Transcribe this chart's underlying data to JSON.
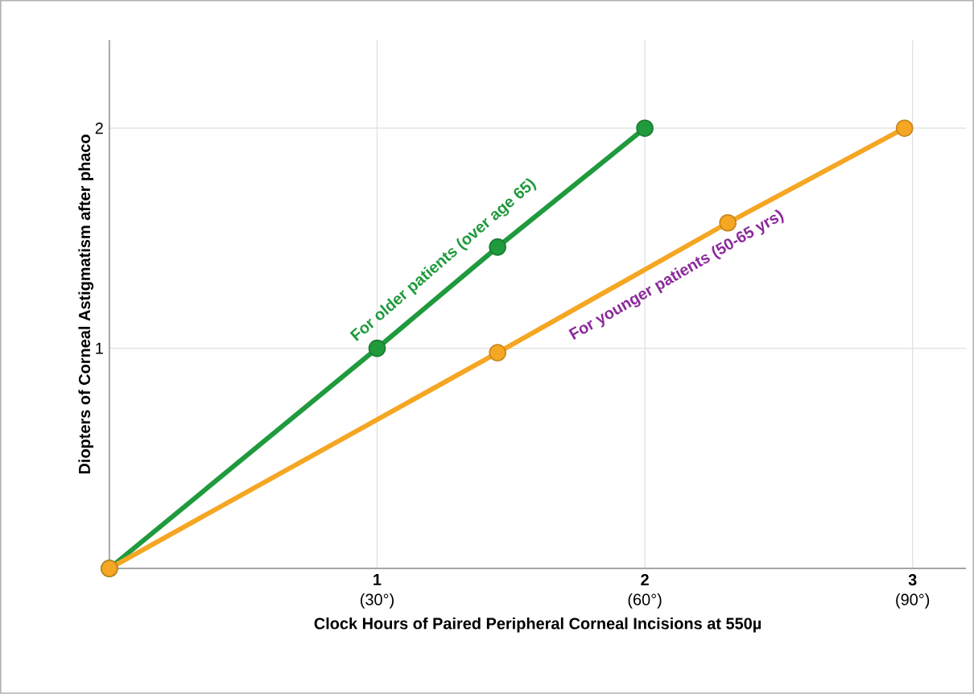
{
  "chart_data": {
    "type": "line",
    "xlabel": "Clock Hours of Paired Peripheral Corneal Incisions at 550µ",
    "ylabel": "Diopters of Corneal Astigmatism after phaco",
    "x": [
      0,
      1,
      1.45,
      2
    ],
    "series": [
      {
        "color": "#1f9a3d",
        "values": [
          0,
          1,
          1.46,
          2
        ]
      },
      {
        "color": "#f5a623",
        "x": [
          0,
          1.45,
          2.31,
          2.97
        ],
        "values": [
          0,
          0.98,
          1.57,
          2
        ]
      }
    ],
    "xlim": [
      0,
      3.2
    ],
    "ylim": [
      0,
      2.4
    ],
    "xticks": [
      1,
      2,
      3
    ],
    "x2lim": [
      0,
      96
    ],
    "x2ticks": [
      {
        "value": 30,
        "label": "(30°)"
      },
      {
        "value": 60,
        "label": "(60°)"
      },
      {
        "value": 90,
        "label": "(90°)"
      }
    ],
    "yticks": [
      1,
      2
    ],
    "grid": true,
    "marker": "circle",
    "line_style": "solid",
    "annotations": [
      "For older patients (over age 65)",
      "For younger patients (50-65 yrs)"
    ]
  }
}
